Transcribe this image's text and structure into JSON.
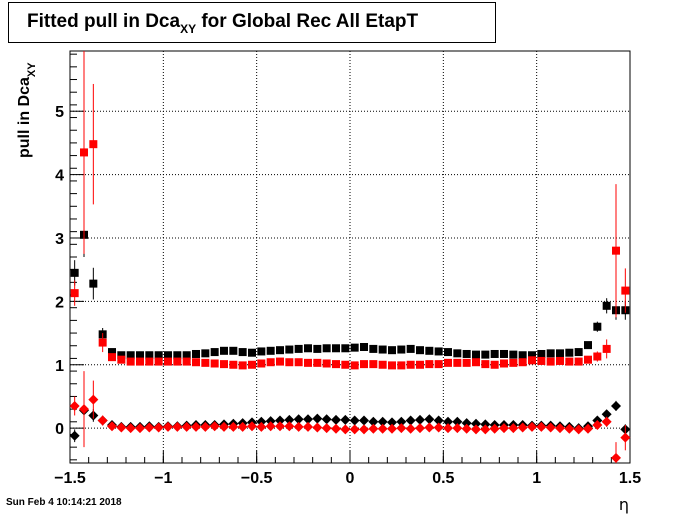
{
  "title": {
    "main": "Fitted pull in Dca",
    "sub": "XY",
    "rest": " for Global Rec All EtapT"
  },
  "footer": {
    "timestamp": "Sun Feb  4 10:14:21 2018"
  },
  "colors": {
    "black_series": "#000000",
    "red_series": "#ff0000",
    "grid": "#000000"
  },
  "chart_data": {
    "type": "scatter",
    "xlabel": "η",
    "ylabel": "pull in Dca",
    "ylabel_sub": "XY",
    "xlim": [
      -1.5,
      1.5
    ],
    "ylim": [
      -0.55,
      5.95
    ],
    "grid": true,
    "x_ticks": [
      -1.5,
      -1,
      -0.5,
      0,
      0.5,
      1,
      1.5
    ],
    "x_tick_labels": [
      "−1.5",
      "−1",
      "−0.5",
      "0",
      "0.5",
      "1",
      "1.5"
    ],
    "y_ticks": [
      0,
      1,
      2,
      3,
      4,
      5
    ],
    "y_tick_labels": [
      "0",
      "1",
      "2",
      "3",
      "4",
      "5"
    ],
    "x": [
      -1.475,
      -1.425,
      -1.375,
      -1.325,
      -1.275,
      -1.225,
      -1.175,
      -1.125,
      -1.075,
      -1.025,
      -0.975,
      -0.925,
      -0.875,
      -0.825,
      -0.775,
      -0.725,
      -0.675,
      -0.625,
      -0.575,
      -0.525,
      -0.475,
      -0.425,
      -0.375,
      -0.325,
      -0.275,
      -0.225,
      -0.175,
      -0.125,
      -0.075,
      -0.025,
      0.025,
      0.075,
      0.125,
      0.175,
      0.225,
      0.275,
      0.325,
      0.375,
      0.425,
      0.475,
      0.525,
      0.575,
      0.625,
      0.675,
      0.725,
      0.775,
      0.825,
      0.875,
      0.925,
      0.975,
      1.025,
      1.075,
      1.125,
      1.175,
      1.225,
      1.275,
      1.325,
      1.375,
      1.425,
      1.475
    ],
    "series": [
      {
        "marker": "square",
        "color": "#000000",
        "values": [
          2.45,
          3.05,
          2.28,
          1.48,
          1.2,
          1.15,
          1.15,
          1.15,
          1.15,
          1.15,
          1.15,
          1.15,
          1.15,
          1.17,
          1.18,
          1.2,
          1.22,
          1.22,
          1.2,
          1.19,
          1.21,
          1.22,
          1.23,
          1.24,
          1.25,
          1.26,
          1.25,
          1.26,
          1.26,
          1.26,
          1.27,
          1.28,
          1.25,
          1.24,
          1.23,
          1.24,
          1.25,
          1.23,
          1.22,
          1.21,
          1.2,
          1.18,
          1.17,
          1.16,
          1.16,
          1.17,
          1.17,
          1.16,
          1.15,
          1.15,
          1.17,
          1.18,
          1.18,
          1.19,
          1.2,
          1.31,
          1.6,
          1.93,
          1.86,
          1.86
        ],
        "errors": [
          0.2,
          0.35,
          0.25,
          0.1,
          0.05,
          0.03,
          0.03,
          0.03,
          0.03,
          0.03,
          0.03,
          0.03,
          0.03,
          0.03,
          0.03,
          0.03,
          0.03,
          0.03,
          0.03,
          0.03,
          0.03,
          0.03,
          0.03,
          0.03,
          0.03,
          0.03,
          0.03,
          0.03,
          0.03,
          0.03,
          0.03,
          0.03,
          0.03,
          0.03,
          0.03,
          0.03,
          0.03,
          0.03,
          0.03,
          0.03,
          0.03,
          0.03,
          0.03,
          0.03,
          0.03,
          0.03,
          0.03,
          0.03,
          0.03,
          0.03,
          0.03,
          0.03,
          0.03,
          0.03,
          0.03,
          0.05,
          0.08,
          0.12,
          0.15,
          0.15
        ]
      },
      {
        "marker": "square",
        "color": "#ff0000",
        "values": [
          2.13,
          4.35,
          4.48,
          1.35,
          1.12,
          1.08,
          1.05,
          1.05,
          1.05,
          1.05,
          1.05,
          1.05,
          1.05,
          1.04,
          1.03,
          1.02,
          1.01,
          1.0,
          0.99,
          1.0,
          1.02,
          1.04,
          1.05,
          1.04,
          1.04,
          1.03,
          1.03,
          1.02,
          1.01,
          1.0,
          0.99,
          1.01,
          1.01,
          1.0,
          0.99,
          0.99,
          1.0,
          1.0,
          1.01,
          1.01,
          1.03,
          1.03,
          1.03,
          1.04,
          1.01,
          1.0,
          1.02,
          1.03,
          1.04,
          1.07,
          1.06,
          1.05,
          1.06,
          1.05,
          1.05,
          1.08,
          1.13,
          1.25,
          2.8,
          2.17
        ],
        "errors": [
          0.2,
          1.6,
          0.95,
          0.15,
          0.05,
          0.03,
          0.03,
          0.03,
          0.03,
          0.03,
          0.03,
          0.03,
          0.03,
          0.03,
          0.03,
          0.03,
          0.03,
          0.03,
          0.03,
          0.03,
          0.03,
          0.03,
          0.03,
          0.03,
          0.03,
          0.03,
          0.03,
          0.03,
          0.03,
          0.03,
          0.03,
          0.03,
          0.03,
          0.03,
          0.03,
          0.03,
          0.03,
          0.03,
          0.03,
          0.03,
          0.03,
          0.03,
          0.03,
          0.03,
          0.03,
          0.03,
          0.03,
          0.03,
          0.03,
          0.03,
          0.03,
          0.03,
          0.03,
          0.03,
          0.03,
          0.05,
          0.08,
          0.15,
          1.05,
          0.35
        ]
      },
      {
        "marker": "diamond",
        "color": "#000000",
        "values": [
          -0.12,
          0.28,
          0.2,
          0.12,
          0.05,
          0.02,
          0.02,
          0.02,
          0.03,
          0.02,
          0.03,
          0.03,
          0.04,
          0.05,
          0.05,
          0.05,
          0.06,
          0.07,
          0.08,
          0.09,
          0.1,
          0.11,
          0.12,
          0.13,
          0.14,
          0.14,
          0.15,
          0.14,
          0.13,
          0.13,
          0.12,
          0.12,
          0.1,
          0.1,
          0.09,
          0.1,
          0.12,
          0.13,
          0.14,
          0.12,
          0.1,
          0.1,
          0.08,
          0.07,
          0.06,
          0.05,
          0.05,
          0.05,
          0.05,
          0.04,
          0.04,
          0.04,
          0.03,
          0.02,
          0.0,
          0.03,
          0.12,
          0.22,
          0.35,
          -0.02
        ],
        "errors": [
          0.1,
          0.15,
          0.1,
          0.06,
          0.03,
          0.02,
          0.02,
          0.02,
          0.02,
          0.02,
          0.02,
          0.02,
          0.02,
          0.02,
          0.02,
          0.02,
          0.02,
          0.02,
          0.02,
          0.02,
          0.02,
          0.02,
          0.02,
          0.02,
          0.02,
          0.02,
          0.02,
          0.02,
          0.02,
          0.02,
          0.02,
          0.02,
          0.02,
          0.02,
          0.02,
          0.02,
          0.02,
          0.02,
          0.02,
          0.02,
          0.02,
          0.02,
          0.02,
          0.02,
          0.02,
          0.02,
          0.02,
          0.02,
          0.02,
          0.02,
          0.02,
          0.02,
          0.02,
          0.02,
          0.02,
          0.03,
          0.04,
          0.05,
          0.08,
          0.08
        ]
      },
      {
        "marker": "diamond",
        "color": "#ff0000",
        "values": [
          0.35,
          0.3,
          0.45,
          0.12,
          0.03,
          0.01,
          0.0,
          0.0,
          0.01,
          0.01,
          0.02,
          0.02,
          0.02,
          0.02,
          0.02,
          0.03,
          0.02,
          0.02,
          0.02,
          0.03,
          0.02,
          0.03,
          0.03,
          0.03,
          0.02,
          0.02,
          0.01,
          0.0,
          -0.01,
          -0.02,
          -0.02,
          -0.02,
          -0.01,
          -0.01,
          -0.01,
          0.0,
          -0.01,
          0.0,
          0.01,
          0.01,
          0.0,
          0.0,
          -0.01,
          -0.02,
          -0.02,
          -0.01,
          0.0,
          0.0,
          0.01,
          0.02,
          0.02,
          0.01,
          0.0,
          -0.01,
          -0.02,
          -0.01,
          0.05,
          0.1,
          -0.47,
          -0.15
        ],
        "errors": [
          0.15,
          0.6,
          0.3,
          0.08,
          0.03,
          0.02,
          0.02,
          0.02,
          0.02,
          0.02,
          0.02,
          0.02,
          0.02,
          0.02,
          0.02,
          0.02,
          0.02,
          0.02,
          0.02,
          0.02,
          0.02,
          0.02,
          0.02,
          0.02,
          0.02,
          0.02,
          0.02,
          0.02,
          0.02,
          0.02,
          0.02,
          0.02,
          0.02,
          0.02,
          0.02,
          0.02,
          0.02,
          0.02,
          0.02,
          0.02,
          0.02,
          0.02,
          0.02,
          0.02,
          0.02,
          0.02,
          0.02,
          0.02,
          0.02,
          0.02,
          0.02,
          0.02,
          0.02,
          0.02,
          0.02,
          0.03,
          0.05,
          0.08,
          0.25,
          0.2
        ]
      }
    ]
  }
}
